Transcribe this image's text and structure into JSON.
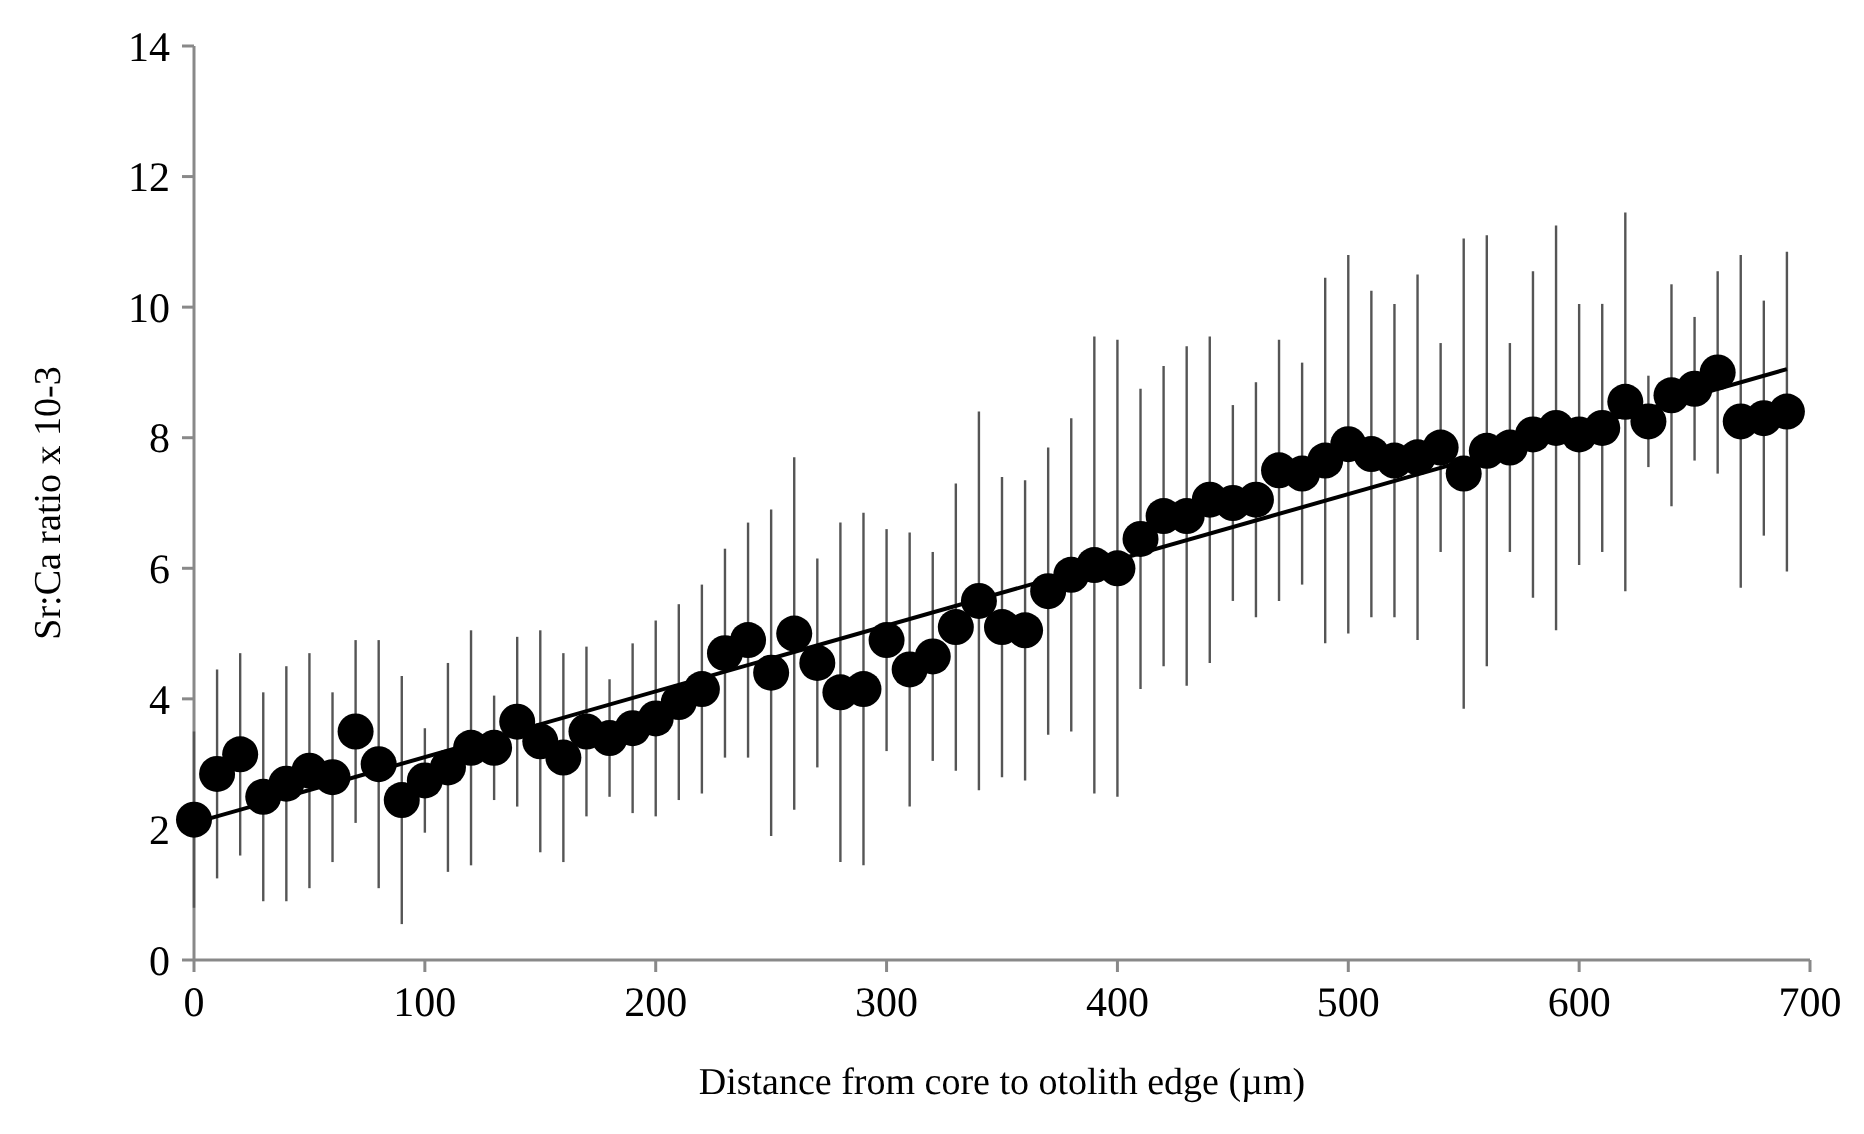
{
  "chart_data": {
    "type": "scatter",
    "xlabel": "Distance from core to otolith edge (µm)",
    "ylabel": "Sr:Ca ratio x 10-3",
    "xlim": [
      0,
      700
    ],
    "xticks": [
      0,
      100,
      200,
      300,
      400,
      500,
      600,
      700
    ],
    "ylim": [
      0,
      14
    ],
    "yticks": [
      0,
      2,
      4,
      6,
      8,
      10,
      12,
      14
    ],
    "marker": "circle",
    "series": [
      {
        "color": "#000000",
        "x": [
          0,
          10,
          20,
          30,
          40,
          50,
          60,
          70,
          80,
          90,
          100,
          110,
          120,
          130,
          140,
          150,
          160,
          170,
          180,
          190,
          200,
          210,
          220,
          230,
          240,
          250,
          260,
          270,
          280,
          290,
          300,
          310,
          320,
          330,
          340,
          350,
          360,
          370,
          380,
          390,
          400,
          410,
          420,
          430,
          440,
          450,
          460,
          470,
          480,
          490,
          500,
          510,
          520,
          530,
          540,
          550,
          560,
          570,
          580,
          590,
          600,
          610,
          620,
          630,
          640,
          650,
          660,
          670,
          680,
          690
        ],
        "values": [
          2.15,
          2.85,
          3.15,
          2.5,
          2.7,
          2.9,
          2.8,
          3.5,
          3.0,
          2.45,
          2.75,
          2.95,
          3.25,
          3.25,
          3.65,
          3.35,
          3.1,
          3.5,
          3.4,
          3.55,
          3.7,
          3.95,
          4.15,
          4.7,
          4.9,
          4.4,
          5.0,
          4.55,
          4.1,
          4.15,
          4.9,
          4.45,
          4.65,
          5.1,
          5.5,
          5.1,
          5.05,
          5.65,
          5.9,
          6.05,
          6.0,
          6.45,
          6.8,
          6.8,
          7.05,
          7.0,
          7.05,
          7.5,
          7.45,
          7.65,
          7.9,
          7.75,
          7.65,
          7.7,
          7.85,
          7.45,
          7.8,
          7.85,
          8.05,
          8.15,
          8.05,
          8.15,
          8.55,
          8.25,
          8.65,
          8.75,
          9.0,
          8.25,
          8.3,
          8.4
        ],
        "errors": [
          1.35,
          1.6,
          1.55,
          1.6,
          1.8,
          1.8,
          1.3,
          1.4,
          1.9,
          1.9,
          0.8,
          1.6,
          1.8,
          0.8,
          1.3,
          1.7,
          1.6,
          1.3,
          0.9,
          1.3,
          1.5,
          1.5,
          1.6,
          1.6,
          1.8,
          2.5,
          2.7,
          1.6,
          2.6,
          2.7,
          1.7,
          2.1,
          1.6,
          2.2,
          2.9,
          2.3,
          2.3,
          2.2,
          2.4,
          3.5,
          3.5,
          2.3,
          2.3,
          2.6,
          2.5,
          1.5,
          1.8,
          2.0,
          1.7,
          2.8,
          2.9,
          2.5,
          2.4,
          2.8,
          1.6,
          3.6,
          3.3,
          1.6,
          2.5,
          3.1,
          2.0,
          1.9,
          2.9,
          0.7,
          1.7,
          1.1,
          1.55,
          2.55,
          1.8,
          2.45
        ]
      },
      {
        "type": "line",
        "color": "#000000",
        "marker": "none",
        "x": [
          0,
          690
        ],
        "values": [
          2.1,
          9.05
        ]
      }
    ]
  }
}
